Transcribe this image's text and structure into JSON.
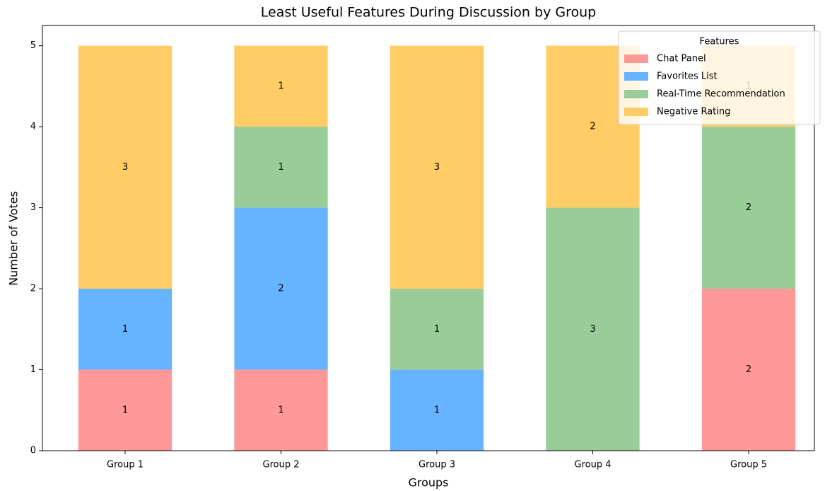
{
  "chart_data": {
    "type": "stacked_bar",
    "title": "Least Useful Features During Discussion by Group",
    "x_label": "Groups",
    "y_label": "Number of Votes",
    "categories": [
      "Group 1",
      "Group 2",
      "Group 3",
      "Group 4",
      "Group 5"
    ],
    "series": [
      {
        "name": "Chat Panel",
        "color": "#ff9999",
        "values": [
          1,
          1,
          0,
          0,
          2
        ]
      },
      {
        "name": "Favorites List",
        "color": "#66b3ff",
        "values": [
          1,
          2,
          1,
          0,
          0
        ]
      },
      {
        "name": "Real-Time Recommendation",
        "color": "#99cc99",
        "values": [
          0,
          1,
          1,
          3,
          2
        ]
      },
      {
        "name": "Negative Rating",
        "color": "#ffcc66",
        "values": [
          3,
          1,
          3,
          2,
          1
        ]
      }
    ],
    "legend_title": "Features",
    "legend_position": "upper right",
    "ylim": [
      0,
      5.25
    ],
    "yticks": [
      0,
      1,
      2,
      3,
      4,
      5
    ]
  }
}
